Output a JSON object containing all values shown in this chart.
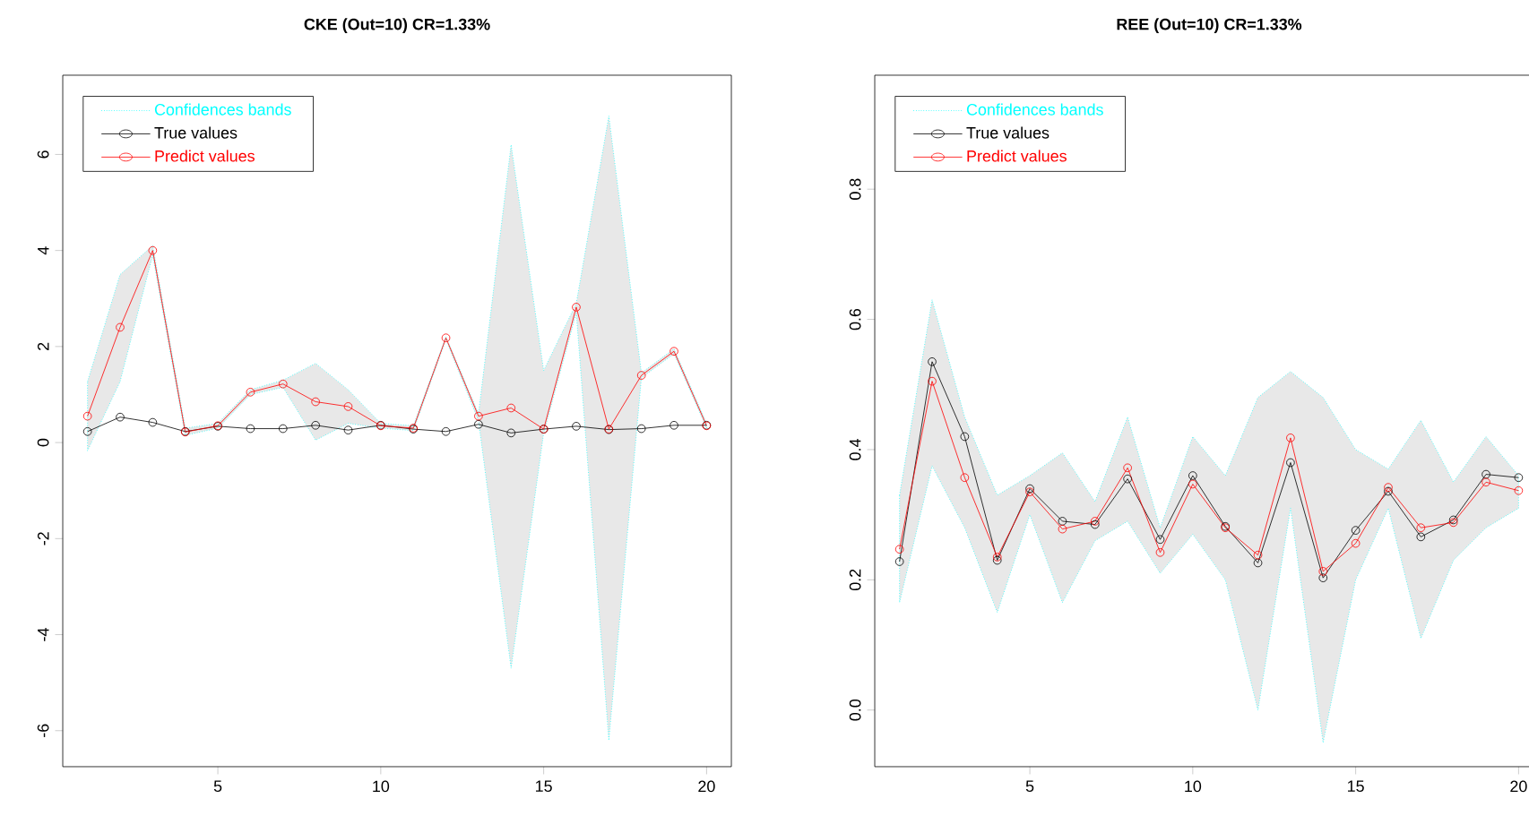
{
  "chart_data": [
    {
      "type": "line",
      "title": "CKE (Out=10) CR=1.33%",
      "x": [
        1,
        2,
        3,
        4,
        5,
        6,
        7,
        8,
        9,
        10,
        11,
        12,
        13,
        14,
        15,
        16,
        17,
        18,
        19,
        20
      ],
      "xlim": [
        0.24,
        20.76
      ],
      "xticks": [
        5,
        10,
        15,
        20
      ],
      "ylim": [
        -6.75,
        7.65
      ],
      "yticks": [
        -6,
        -4,
        -2,
        0,
        2,
        4,
        6
      ],
      "marker": "circle",
      "legend": "top",
      "series": [
        {
          "name": "Confidences bands",
          "type": "area",
          "color": "#00ffff",
          "line_style": "dotted",
          "values": [
            null,
            null,
            null,
            null,
            null,
            null,
            null,
            null,
            null,
            null,
            null,
            null,
            null,
            null,
            null,
            null,
            null,
            null,
            null,
            null
          ],
          "lower": [
            -0.17,
            1.27,
            3.9,
            0.15,
            0.3,
            1.0,
            1.15,
            0.05,
            0.4,
            0.3,
            0.25,
            2.15,
            0.45,
            -4.7,
            0.2,
            2.7,
            -6.2,
            1.35,
            1.85,
            0.3
          ],
          "upper": [
            1.27,
            3.5,
            4.1,
            0.3,
            0.4,
            1.1,
            1.3,
            1.65,
            1.1,
            0.4,
            0.35,
            2.2,
            0.6,
            6.2,
            1.5,
            2.9,
            6.8,
            1.45,
            1.95,
            0.4
          ]
        },
        {
          "name": "True values",
          "color": "#000000",
          "values": [
            0.23,
            0.53,
            0.42,
            0.23,
            0.34,
            0.29,
            0.29,
            0.36,
            0.26,
            0.36,
            0.28,
            0.23,
            0.38,
            0.2,
            0.28,
            0.34,
            0.27,
            0.29,
            0.36,
            0.36
          ]
        },
        {
          "name": "Predict values",
          "color": "#ff0000",
          "values": [
            0.55,
            2.4,
            4.0,
            0.22,
            0.35,
            1.05,
            1.22,
            0.85,
            0.75,
            0.35,
            0.3,
            2.18,
            0.55,
            0.72,
            0.28,
            2.82,
            0.28,
            1.4,
            1.9,
            0.35
          ]
        }
      ]
    },
    {
      "type": "line",
      "title": "REE (Out=10) CR=1.33%",
      "x": [
        1,
        2,
        3,
        4,
        5,
        6,
        7,
        8,
        9,
        10,
        11,
        12,
        13,
        14,
        15,
        16,
        17,
        18,
        19,
        20
      ],
      "xlim": [
        0.24,
        20.76
      ],
      "xticks": [
        5,
        10,
        15,
        20
      ],
      "ylim": [
        -0.087,
        0.975
      ],
      "yticks": [
        {
          "value": 0,
          "label": "0.0"
        },
        {
          "value": 0.2,
          "label": "0.2"
        },
        {
          "value": 0.4,
          "label": "0.4"
        },
        {
          "value": 0.6,
          "label": "0.6"
        },
        {
          "value": 0.8,
          "label": "0.8"
        }
      ],
      "marker": "circle",
      "legend": "top",
      "series": [
        {
          "name": "Confidences bands",
          "type": "area",
          "color": "#00ffff",
          "line_style": "dotted",
          "values": [
            null,
            null,
            null,
            null,
            null,
            null,
            null,
            null,
            null,
            null,
            null,
            null,
            null,
            null,
            null,
            null,
            null,
            null,
            null,
            null
          ],
          "lower": [
            0.165,
            0.375,
            0.28,
            0.15,
            0.3,
            0.165,
            0.26,
            0.29,
            0.21,
            0.27,
            0.2,
            0.0,
            0.31,
            -0.05,
            0.2,
            0.31,
            0.11,
            0.23,
            0.28,
            0.31
          ],
          "upper": [
            0.33,
            0.63,
            0.45,
            0.33,
            0.36,
            0.395,
            0.32,
            0.45,
            0.28,
            0.42,
            0.36,
            0.48,
            0.52,
            0.48,
            0.4,
            0.37,
            0.445,
            0.35,
            0.42,
            0.36
          ]
        },
        {
          "name": "True values",
          "color": "#000000",
          "values": [
            0.228,
            0.535,
            0.42,
            0.23,
            0.34,
            0.29,
            0.285,
            0.355,
            0.262,
            0.36,
            0.282,
            0.226,
            0.38,
            0.203,
            0.276,
            0.336,
            0.266,
            0.292,
            0.362,
            0.357
          ]
        },
        {
          "name": "Predict values",
          "color": "#ff0000",
          "values": [
            0.247,
            0.505,
            0.357,
            0.235,
            0.335,
            0.278,
            0.29,
            0.372,
            0.242,
            0.347,
            0.28,
            0.238,
            0.418,
            0.213,
            0.256,
            0.342,
            0.28,
            0.288,
            0.35,
            0.337
          ]
        }
      ]
    }
  ]
}
